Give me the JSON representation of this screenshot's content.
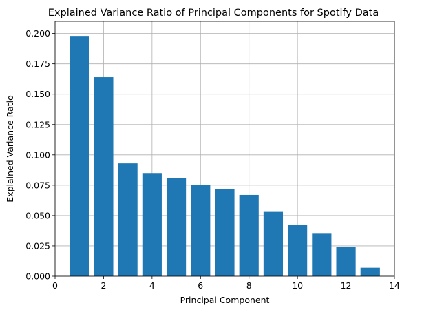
{
  "chart_data": {
    "type": "bar",
    "title": "Explained Variance Ratio of Principal Components for Spotify Data",
    "xlabel": "Principal Component",
    "ylabel": "Explained Variance Ratio",
    "x": [
      1,
      2,
      3,
      4,
      5,
      6,
      7,
      8,
      9,
      10,
      11,
      12,
      13
    ],
    "values": [
      0.198,
      0.164,
      0.093,
      0.085,
      0.081,
      0.075,
      0.072,
      0.067,
      0.053,
      0.042,
      0.035,
      0.024,
      0.007
    ],
    "bar_width": 0.8,
    "xlim": [
      0,
      14
    ],
    "ylim": [
      0,
      0.21
    ],
    "xticks": [
      0,
      2,
      4,
      6,
      8,
      10,
      12,
      14
    ],
    "xtick_labels": [
      "0",
      "2",
      "4",
      "6",
      "8",
      "10",
      "12",
      "14"
    ],
    "yticks": [
      0,
      0.025,
      0.05,
      0.075,
      0.1,
      0.125,
      0.15,
      0.175,
      0.2
    ],
    "ytick_labels": [
      "0.000",
      "0.025",
      "0.050",
      "0.075",
      "0.100",
      "0.125",
      "0.150",
      "0.175",
      "0.200"
    ],
    "grid": true,
    "colors": {
      "bar": "#1f77b4",
      "grid": "#b0b0b0",
      "axis": "#000000"
    }
  }
}
